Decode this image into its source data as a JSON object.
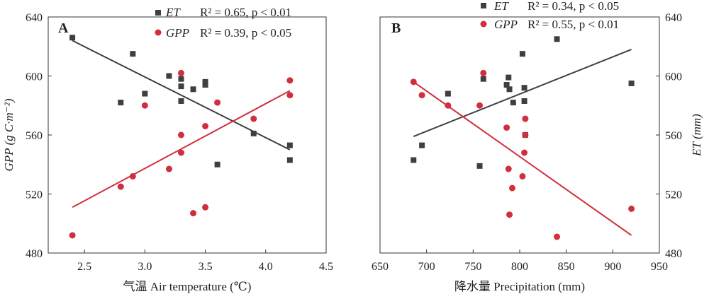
{
  "chart_data": [
    {
      "type": "scatter",
      "panel_label": "A",
      "xlabel": "气温 Air temperature (℃)",
      "ylabel": "GPP (g C·m⁻²)",
      "xlim": [
        2.2,
        4.5
      ],
      "xticks": [
        2.5,
        3.0,
        3.5,
        4.0,
        4.5
      ],
      "xtick_labels": [
        "2.5",
        "3.0",
        "3.5",
        "4.0",
        "4.5"
      ],
      "ylim": [
        480,
        640
      ],
      "yticks": [
        480,
        520,
        560,
        600,
        640
      ],
      "ytick_labels": [
        "480",
        "520",
        "560",
        "600",
        "640"
      ],
      "series": [
        {
          "name": "ET",
          "stat": "R² = 0.65, p < 0.01",
          "color": "#3f3f3f",
          "marker": "square",
          "points": [
            [
              2.4,
              626
            ],
            [
              2.8,
              582
            ],
            [
              2.9,
              615
            ],
            [
              3.0,
              588
            ],
            [
              3.2,
              600
            ],
            [
              3.3,
              598
            ],
            [
              3.3,
              593
            ],
            [
              3.3,
              583
            ],
            [
              3.4,
              591
            ],
            [
              3.5,
              596
            ],
            [
              3.5,
              594
            ],
            [
              3.6,
              540
            ],
            [
              3.9,
              561
            ],
            [
              4.2,
              553
            ],
            [
              4.2,
              543
            ]
          ],
          "fit": [
            [
              2.4,
              624
            ],
            [
              4.2,
              550
            ]
          ]
        },
        {
          "name": "GPP",
          "stat": "R² = 0.39, p < 0.05",
          "color": "#d12f3f",
          "marker": "circle",
          "points": [
            [
              2.4,
              492
            ],
            [
              2.8,
              525
            ],
            [
              2.9,
              532
            ],
            [
              3.0,
              580
            ],
            [
              3.2,
              537
            ],
            [
              3.3,
              602
            ],
            [
              3.3,
              560
            ],
            [
              3.3,
              548
            ],
            [
              3.4,
              507
            ],
            [
              3.5,
              566
            ],
            [
              3.5,
              511
            ],
            [
              3.6,
              582
            ],
            [
              3.9,
              571
            ],
            [
              4.2,
              597
            ],
            [
              4.2,
              587
            ]
          ],
          "fit": [
            [
              2.4,
              511
            ],
            [
              4.2,
              590
            ]
          ]
        }
      ]
    },
    {
      "type": "scatter",
      "panel_label": "B",
      "xlabel": "降水量 Precipitation (mm)",
      "ylabel": "ET (mm)",
      "xlim": [
        650,
        950
      ],
      "xticks": [
        650,
        700,
        750,
        800,
        850,
        900,
        950
      ],
      "xtick_labels": [
        "650",
        "700",
        "750",
        "800",
        "850",
        "900",
        "950"
      ],
      "ylim": [
        480,
        640
      ],
      "yticks": [
        480,
        520,
        560,
        600,
        640
      ],
      "ytick_labels": [
        "480",
        "520",
        "560",
        "600",
        "640"
      ],
      "series": [
        {
          "name": "ET",
          "stat": "R² = 0.34, p < 0.05",
          "color": "#3f3f3f",
          "marker": "square",
          "points": [
            [
              686,
              543
            ],
            [
              695,
              553
            ],
            [
              723,
              588
            ],
            [
              757,
              539
            ],
            [
              761,
              598
            ],
            [
              786,
              594
            ],
            [
              788,
              599
            ],
            [
              789,
              591
            ],
            [
              793,
              582
            ],
            [
              803,
              615
            ],
            [
              805,
              592
            ],
            [
              805,
              583
            ],
            [
              806,
              560
            ],
            [
              840,
              625
            ],
            [
              920,
              595
            ]
          ],
          "fit": [
            [
              686,
              559
            ],
            [
              920,
              618
            ]
          ]
        },
        {
          "name": "GPP",
          "stat": "R² = 0.55, p < 0.01",
          "color": "#d12f3f",
          "marker": "circle",
          "points": [
            [
              686,
              596
            ],
            [
              695,
              587
            ],
            [
              723,
              580
            ],
            [
              757,
              580
            ],
            [
              761,
              602
            ],
            [
              786,
              565
            ],
            [
              788,
              537
            ],
            [
              789,
              506
            ],
            [
              792,
              524
            ],
            [
              803,
              532
            ],
            [
              805,
              548
            ],
            [
              806,
              560
            ],
            [
              806,
              571
            ],
            [
              840,
              491
            ],
            [
              920,
              510
            ]
          ],
          "fit": [
            [
              686,
              596
            ],
            [
              920,
              492
            ]
          ]
        }
      ]
    }
  ]
}
